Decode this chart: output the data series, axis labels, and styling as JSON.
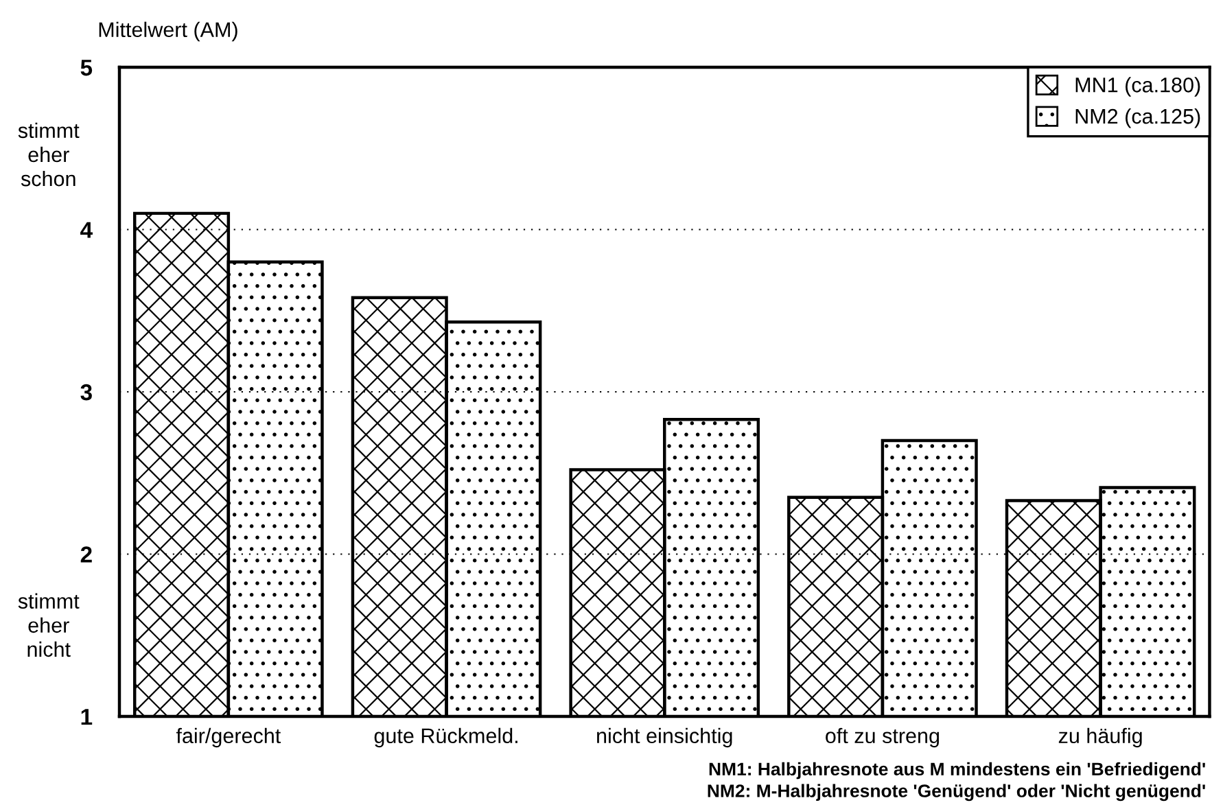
{
  "chart_data": {
    "type": "bar",
    "ylabel": "Mittelwert (AM)",
    "categories": [
      "fair/gerecht",
      "gute Rückmeld.",
      "nicht einsichtig",
      "oft zu streng",
      "zu häufig"
    ],
    "series": [
      {
        "name": "MN1 (ca.180)",
        "color": "#000000",
        "values": [
          4.1,
          3.58,
          2.52,
          2.35,
          2.33
        ]
      },
      {
        "name": "NM2 (ca.125)",
        "color": "#000000",
        "values": [
          3.8,
          3.43,
          2.83,
          2.7,
          2.41
        ]
      }
    ],
    "ylim": [
      1,
      5
    ],
    "yticks": [
      1,
      2,
      3,
      4,
      5
    ],
    "grid": "y",
    "legend": "top right",
    "annotations": [
      "stimmt\neher\nschon",
      "stimmt\neher\nnicht",
      "NM1: Halbjahresnote aus M mindestens ein 'Befriedigend'",
      "NM2: M-Halbjahresnote 'Genügend' oder 'Nicht genügend'"
    ]
  }
}
